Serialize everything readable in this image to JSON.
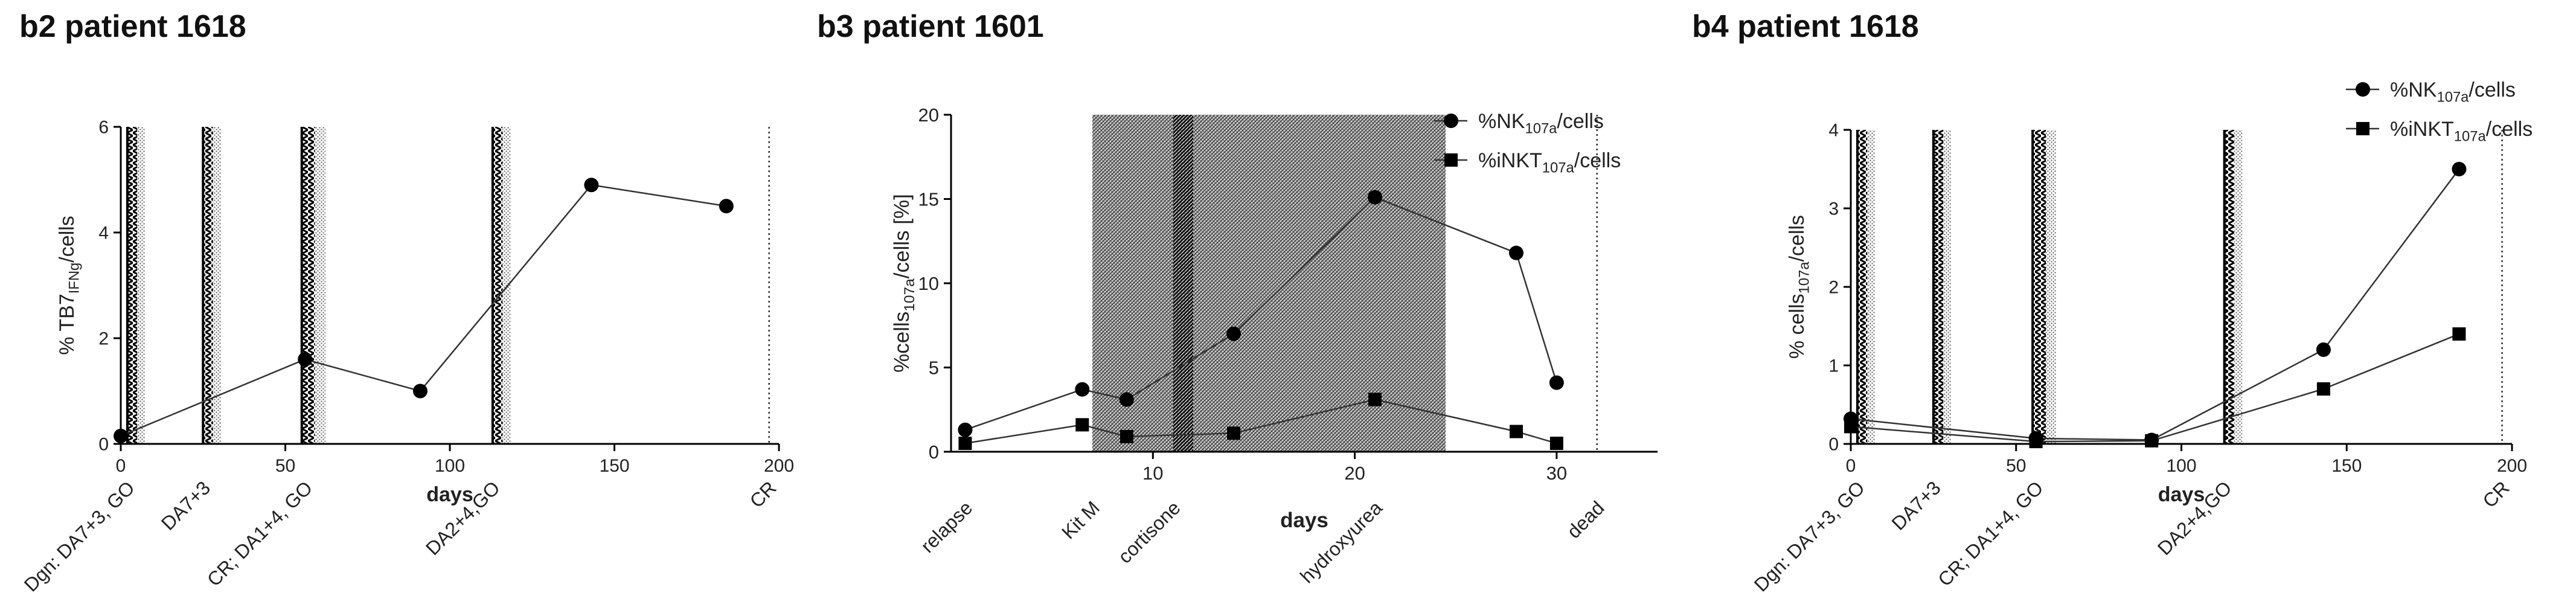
{
  "panels": [
    {
      "title": "b2 patient 1618"
    },
    {
      "title": "b3 patient 1601"
    },
    {
      "title": "b4 patient 1618"
    }
  ],
  "chart_data": [
    {
      "type": "line",
      "title": "b2 patient 1618",
      "xlabel": "days",
      "ylabel": {
        "main": "% TB7",
        "sub": "IFNg",
        "tail": "/cells"
      },
      "xlim": [
        0,
        200
      ],
      "ylim": [
        0,
        6
      ],
      "xticks": [
        0,
        50,
        100,
        150,
        200
      ],
      "yticks": [
        0,
        2,
        4,
        6
      ],
      "series": [
        {
          "marker": "circle",
          "x": [
            0,
            56,
            91,
            143,
            184
          ],
          "y": [
            0.15,
            1.6,
            1.0,
            4.9,
            4.5
          ]
        }
      ],
      "bands": [
        {
          "start": 2,
          "end": 5
        },
        {
          "start": 25,
          "end": 28
        },
        {
          "start": 55,
          "end": 59
        },
        {
          "start": 113,
          "end": 116
        }
      ],
      "markers": [
        {
          "x": 197,
          "style": "dotted"
        }
      ],
      "events": [
        {
          "x": 2,
          "label": "Dgn: DA7+3, GO"
        },
        {
          "x": 25,
          "label": "DA7+3"
        },
        {
          "x": 56,
          "label": "CR; DA1+4, GO"
        },
        {
          "x": 113,
          "label": "DA2+4,GO"
        },
        {
          "x": 197,
          "label": "CR"
        }
      ],
      "grid": false,
      "legend": "none"
    },
    {
      "type": "line",
      "title": "b3 patient 1601",
      "xlabel": "days",
      "ylabel": {
        "main": "%cells",
        "sub": "107a",
        "tail": "/cells [%]"
      },
      "xlim": [
        0,
        35
      ],
      "ylim": [
        0,
        20
      ],
      "xticks": [
        10,
        20,
        30
      ],
      "yticks": [
        0,
        5,
        10,
        15,
        20
      ],
      "series": [
        {
          "name_main": "%NK",
          "name_sub": "107a",
          "name_tail": "/cells",
          "marker": "circle",
          "x": [
            0.7,
            6.5,
            8.7,
            14,
            21,
            28,
            30
          ],
          "y": [
            1.3,
            3.7,
            3.1,
            7.0,
            15.1,
            11.8,
            4.1
          ]
        },
        {
          "name_main": "%iNKT",
          "name_sub": "107a",
          "name_tail": "/cells",
          "marker": "square",
          "x": [
            0.7,
            6.5,
            8.7,
            14,
            21,
            28,
            30
          ],
          "y": [
            0.5,
            1.6,
            0.9,
            1.1,
            3.1,
            1.2,
            0.5
          ]
        }
      ],
      "bands": [
        {
          "start": 7,
          "end": 24.5,
          "type": "shaded"
        },
        {
          "start": 11,
          "end": 12,
          "type": "dense"
        }
      ],
      "markers": [
        {
          "x": 32,
          "style": "dotted"
        }
      ],
      "events": [
        {
          "x": 0.7,
          "label": "relapse"
        },
        {
          "x": 7,
          "label": "Kit M"
        },
        {
          "x": 11,
          "label": "cortisone"
        },
        {
          "x": 21,
          "label": "hydroxyurea"
        },
        {
          "x": 32,
          "label": "dead"
        }
      ],
      "grid": false,
      "legend": "top-right"
    },
    {
      "type": "line",
      "title": "b4 patient 1618",
      "xlabel": "days",
      "ylabel": {
        "main": "% cells",
        "sub": "107a",
        "tail": "/cells"
      },
      "xlim": [
        0,
        200
      ],
      "ylim": [
        0,
        4
      ],
      "xticks": [
        0,
        50,
        100,
        150,
        200
      ],
      "yticks": [
        0,
        1,
        2,
        3,
        4
      ],
      "series": [
        {
          "name_main": "%NK",
          "name_sub": "107a",
          "name_tail": "/cells",
          "marker": "circle",
          "x": [
            0,
            56,
            91,
            143,
            184
          ],
          "y": [
            0.32,
            0.07,
            0.05,
            1.2,
            3.5
          ]
        },
        {
          "name_main": "%iNKT",
          "name_sub": "107a",
          "name_tail": "/cells",
          "marker": "square",
          "x": [
            0,
            56,
            91,
            143,
            184
          ],
          "y": [
            0.22,
            0.03,
            0.04,
            0.7,
            1.4
          ]
        }
      ],
      "bands": [
        {
          "start": 2,
          "end": 5
        },
        {
          "start": 25,
          "end": 28
        },
        {
          "start": 55,
          "end": 59
        },
        {
          "start": 113,
          "end": 116
        }
      ],
      "markers": [
        {
          "x": 197,
          "style": "dotted"
        }
      ],
      "events": [
        {
          "x": 2,
          "label": "Dgn: DA7+3, GO"
        },
        {
          "x": 25,
          "label": "DA7+3"
        },
        {
          "x": 56,
          "label": "CR; DA1+4, GO"
        },
        {
          "x": 113,
          "label": "DA2+4,GO"
        },
        {
          "x": 197,
          "label": "CR"
        }
      ],
      "grid": false,
      "legend": "top-right"
    }
  ]
}
